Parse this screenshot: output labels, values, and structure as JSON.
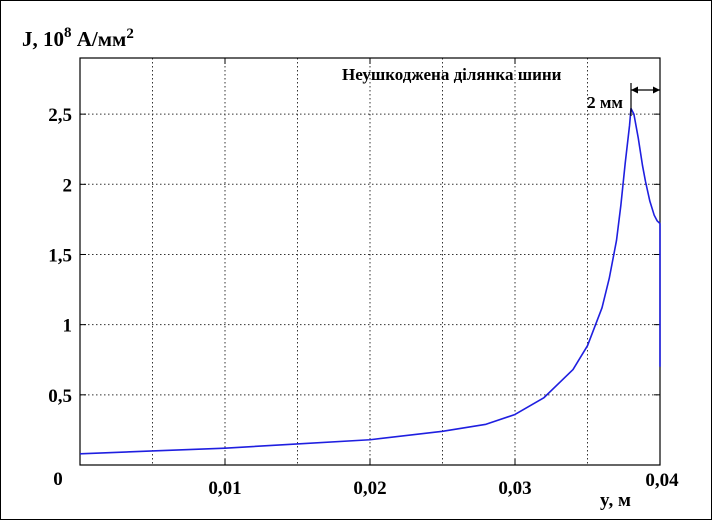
{
  "chart_data": {
    "type": "line",
    "title": "",
    "ylabel": {
      "prefix": "J, 10",
      "exponent": "8",
      "unit": " А/мм",
      "unit_exp": "2"
    },
    "xlabel": "y, м",
    "xlim": [
      0,
      0.04
    ],
    "ylim": [
      0,
      2.9
    ],
    "x_ticks": [
      {
        "value": 0.01,
        "label": "0,01"
      },
      {
        "value": 0.02,
        "label": "0,02"
      },
      {
        "value": 0.03,
        "label": "0,03"
      },
      {
        "value": 0.04,
        "label": "0,04"
      }
    ],
    "y_ticks": [
      {
        "value": 0,
        "label": "0"
      },
      {
        "value": 0.5,
        "label": "0,5"
      },
      {
        "value": 1,
        "label": "1"
      },
      {
        "value": 1.5,
        "label": "1,5"
      },
      {
        "value": 2,
        "label": "2"
      },
      {
        "value": 2.5,
        "label": "2,5"
      }
    ],
    "grid_x": [
      0.005,
      0.01,
      0.015,
      0.02,
      0.025,
      0.03,
      0.035
    ],
    "grid_y": [
      0.5,
      1,
      1.5,
      2,
      2.5
    ],
    "grid": true,
    "series": [
      {
        "color": "#1f1fe0",
        "x": [
          0,
          0.005,
          0.01,
          0.015,
          0.02,
          0.025,
          0.028,
          0.03,
          0.032,
          0.034,
          0.035,
          0.036,
          0.0365,
          0.037,
          0.0373,
          0.0376,
          0.0379,
          0.038,
          0.0382,
          0.0385,
          0.0388,
          0.039,
          0.0393,
          0.0396,
          0.0398,
          0.04,
          0.04,
          0.04
        ],
        "y": [
          0.08,
          0.1,
          0.12,
          0.15,
          0.18,
          0.24,
          0.29,
          0.36,
          0.48,
          0.68,
          0.85,
          1.12,
          1.33,
          1.6,
          1.85,
          2.15,
          2.42,
          2.54,
          2.5,
          2.33,
          2.13,
          2.02,
          1.88,
          1.78,
          1.74,
          1.72,
          1.1,
          0.7
        ]
      }
    ],
    "annotation": {
      "text": "Неушкоджена ділянка шини",
      "width_label": "2 мм",
      "x_start": 0.038,
      "x_end": 0.04
    }
  }
}
